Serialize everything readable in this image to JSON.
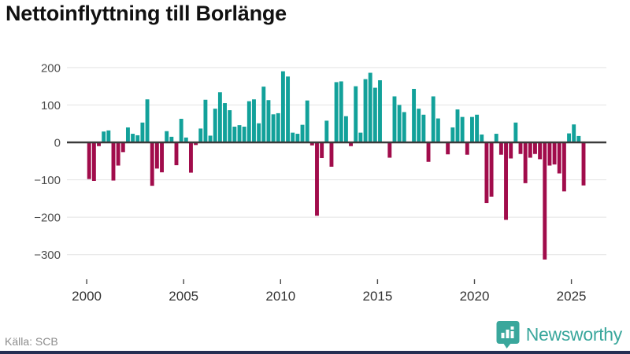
{
  "title": "Nettoinflyttning till Borlänge",
  "source": "Källa: SCB",
  "brand": {
    "name": "Newsworthy",
    "color": "#3aa79c",
    "icon": "newsworthy-badge-icon"
  },
  "colors": {
    "positive": "#12a19a",
    "negative": "#a10c4b",
    "grid": "#e3e3e3",
    "zero_line": "#3a3a3a",
    "bottom_strip": "#252e52"
  },
  "chart_data": {
    "type": "bar",
    "title": "Nettoinflyttning till Borlänge",
    "xlabel": "",
    "ylabel": "",
    "frequency": "quarterly",
    "start": "2000-Q1",
    "end": "2025-Q3",
    "y_ticks": [
      200,
      100,
      0,
      -100,
      -200,
      -300
    ],
    "x_ticks": [
      2000,
      2005,
      2010,
      2015,
      2020,
      2025
    ],
    "ylim": [
      -345,
      220
    ],
    "grid": true,
    "legend_position": "none",
    "values": [
      -98,
      -103,
      -10,
      29,
      32,
      -102,
      -62,
      -26,
      40,
      23,
      19,
      53,
      115,
      -116,
      -70,
      -80,
      30,
      15,
      -61,
      63,
      13,
      -81,
      -7,
      37,
      114,
      18,
      90,
      134,
      105,
      86,
      42,
      46,
      42,
      110,
      115,
      51,
      149,
      113,
      75,
      78,
      190,
      176,
      26,
      23,
      47,
      112,
      -8,
      -196,
      -42,
      58,
      -65,
      161,
      163,
      70,
      -10,
      150,
      26,
      169,
      186,
      146,
      166,
      2,
      -41,
      123,
      100,
      81,
      2,
      143,
      90,
      74,
      -52,
      123,
      64,
      2,
      -32,
      40,
      88,
      68,
      -33,
      68,
      74,
      21,
      -162,
      -145,
      23,
      -33,
      -207,
      -43,
      53,
      -31,
      -109,
      -41,
      -31,
      -45,
      -313,
      -62,
      -59,
      -83,
      -131,
      24,
      48,
      17,
      -115
    ]
  }
}
